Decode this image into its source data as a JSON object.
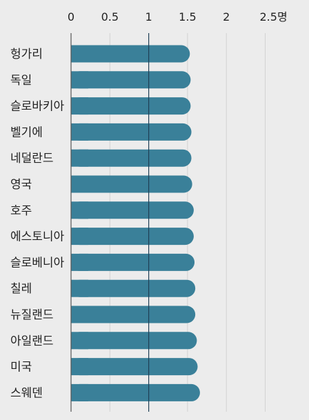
{
  "chart_data": {
    "type": "bar",
    "orientation": "horizontal",
    "unit_suffix": "명",
    "xlim": [
      0,
      3.0
    ],
    "ticks": [
      {
        "value": 0,
        "label": "0"
      },
      {
        "value": 0.5,
        "label": "0.5"
      },
      {
        "value": 1,
        "label": "1"
      },
      {
        "value": 1.5,
        "label": "1.5"
      },
      {
        "value": 2,
        "label": "2"
      },
      {
        "value": 2.5,
        "label": "2.5명"
      }
    ],
    "reference_line": 1,
    "grid": true,
    "categories": [
      "헝가리",
      "독일",
      "슬로바키아",
      "벨기에",
      "네덜란드",
      "영국",
      "호주",
      "에스토니아",
      "슬로베니아",
      "칠레",
      "뉴질랜드",
      "아일랜드",
      "미국",
      "스웨덴"
    ],
    "values": [
      1.53,
      1.54,
      1.54,
      1.55,
      1.55,
      1.56,
      1.58,
      1.58,
      1.59,
      1.6,
      1.6,
      1.62,
      1.63,
      1.66
    ],
    "title": "",
    "xlabel": "",
    "ylabel": "",
    "colors": {
      "bar": "#3a8099",
      "background": "#ececec",
      "grid": "#d2d2d2",
      "axis": "#555555",
      "reference": "#1f3f55"
    }
  }
}
